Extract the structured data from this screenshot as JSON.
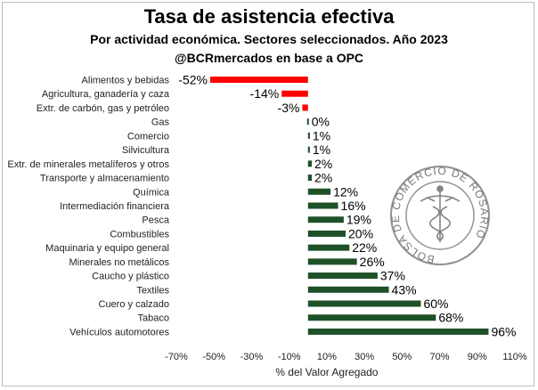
{
  "header": {
    "title": "Tasa de asistencia efectiva",
    "subtitle": "Por actividad económica. Sectores seleccionados. Año 2023",
    "source": "@BCRmercados en base a OPC"
  },
  "watermark": {
    "text": "BOLSA DE COMERCIO DE ROSARIO"
  },
  "colors": {
    "positive": "#1e5128",
    "negative": "#ff0000"
  },
  "chart_data": {
    "type": "bar",
    "orientation": "horizontal",
    "xlabel": "% del Valor Agregado",
    "xlim": [
      -70,
      110
    ],
    "xticks": [
      -70,
      -50,
      -30,
      -10,
      10,
      30,
      50,
      70,
      90,
      110
    ],
    "xtick_labels": [
      "-70%",
      "-50%",
      "-30%",
      "-10%",
      "10%",
      "30%",
      "50%",
      "70%",
      "90%",
      "110%"
    ],
    "categories": [
      "Alimentos y bebidas",
      "Agricultura, ganadería y caza",
      "Extr. de carbón, gas y petróleo",
      "Gas",
      "Comercio",
      "Silvicultura",
      "Extr. de minerales metalíferos y otros",
      "Transporte y almacenamiento",
      "Química",
      "Intermediación financiera",
      "Pesca",
      "Combustibles",
      "Maquinaria y equipo general",
      "Minerales no metálicos",
      "Caucho y plástico",
      "Textiles",
      "Cuero y calzado",
      "Tabaco",
      "Vehículos automotores"
    ],
    "values": [
      -52,
      -14,
      -3,
      0,
      1,
      1,
      2,
      2,
      12,
      16,
      19,
      20,
      22,
      26,
      37,
      43,
      60,
      68,
      96
    ],
    "value_labels": [
      "-52%",
      "-14%",
      "-3%",
      "0%",
      "1%",
      "1%",
      "2%",
      "2%",
      "12%",
      "16%",
      "19%",
      "20%",
      "22%",
      "26%",
      "37%",
      "43%",
      "60%",
      "68%",
      "96%"
    ],
    "grid": false,
    "legend": "none"
  }
}
